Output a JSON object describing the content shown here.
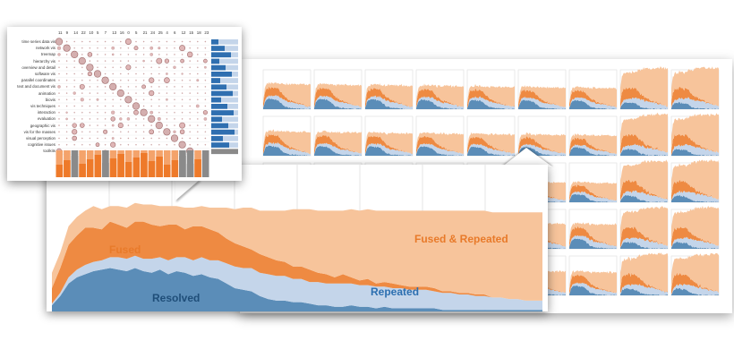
{
  "matrix": {
    "row_labels": [
      "time series data vis",
      "network vis",
      "treemap",
      "hierarchy vis",
      "overview and detail",
      "software vis",
      "parallel coordinates",
      "text and document vis",
      "animation",
      "biovis",
      "vis techniques",
      "interaction",
      "evaluation",
      "geographic vis",
      "vis for the masses",
      "visual perception",
      "cognitive issues",
      "toolkits"
    ],
    "col_labels": [
      "11",
      "9",
      "14",
      "22",
      "10",
      "5",
      "7",
      "13",
      "16",
      "0",
      "5",
      "21",
      "24",
      "25",
      "4",
      "6",
      "12",
      "15",
      "18",
      "23"
    ]
  },
  "chart_data": [
    {
      "type": "area",
      "title": "",
      "series_labels": [
        "Fused",
        "Fused & Repeated",
        "Resolved",
        "Repeated"
      ],
      "x": [
        0,
        1,
        2,
        3,
        4,
        5,
        6,
        7,
        8,
        9,
        10,
        11,
        12,
        13,
        14,
        15,
        16,
        17,
        18,
        19,
        20,
        21,
        22,
        23,
        24,
        25,
        26,
        27,
        28,
        29,
        30,
        31,
        32,
        33,
        34,
        35,
        36,
        37,
        38,
        39,
        40,
        41,
        42,
        43,
        44,
        45,
        46,
        47,
        48,
        49,
        50,
        51,
        52,
        53,
        54,
        55,
        56,
        57,
        58,
        59
      ],
      "series": [
        {
          "name": "Resolved",
          "values": [
            4,
            10,
            18,
            22,
            24,
            26,
            27,
            28,
            27,
            26,
            28,
            26,
            25,
            27,
            24,
            26,
            25,
            23,
            24,
            22,
            21,
            18,
            15,
            14,
            13,
            10,
            8,
            7,
            7,
            6,
            6,
            5,
            4,
            4,
            3,
            3,
            4,
            3,
            3,
            2,
            3,
            2,
            2,
            2,
            2,
            2,
            2,
            1,
            1,
            1,
            1,
            1,
            1,
            1,
            1,
            1,
            1,
            1,
            1,
            1
          ]
        },
        {
          "name": "Repeated",
          "values": [
            1,
            2,
            4,
            5,
            6,
            6,
            6,
            7,
            8,
            8,
            8,
            8,
            9,
            8,
            9,
            9,
            10,
            10,
            11,
            11,
            12,
            13,
            14,
            14,
            15,
            15,
            16,
            16,
            16,
            15,
            15,
            14,
            15,
            14,
            15,
            15,
            14,
            14,
            14,
            14,
            13,
            13,
            13,
            12,
            12,
            12,
            11,
            11,
            11,
            10,
            10,
            9,
            9,
            8,
            8,
            7,
            7,
            6,
            6,
            6
          ]
        },
        {
          "name": "Fused",
          "values": [
            10,
            16,
            21,
            22,
            24,
            22,
            20,
            23,
            21,
            20,
            22,
            24,
            22,
            20,
            23,
            21,
            18,
            22,
            20,
            20,
            18,
            16,
            15,
            14,
            12,
            12,
            11,
            10,
            9,
            8,
            8,
            8,
            6,
            6,
            4,
            6,
            4,
            3,
            4,
            2,
            3,
            3,
            2,
            2,
            2,
            2,
            2,
            1,
            1,
            1,
            1,
            1,
            1,
            0,
            0,
            0,
            0,
            0,
            0,
            0
          ]
        },
        {
          "name": "Fused & Repeated",
          "values": [
            10,
            10,
            12,
            12,
            11,
            14,
            13,
            10,
            12,
            13,
            12,
            11,
            13,
            13,
            12,
            12,
            14,
            12,
            13,
            14,
            16,
            20,
            22,
            25,
            27,
            28,
            30,
            32,
            33,
            37,
            37,
            39,
            40,
            41,
            43,
            41,
            44,
            45,
            45,
            47,
            46,
            47,
            48,
            49,
            49,
            49,
            50,
            52,
            52,
            53,
            53,
            54,
            54,
            55,
            55,
            56,
            56,
            57,
            57,
            57
          ]
        }
      ],
      "colors": {
        "Resolved": "#5b8db8",
        "Repeated": "#c4d5ea",
        "Fused": "#ee8a42",
        "Fused & Repeated": "#f7c49b"
      },
      "label_colors": {
        "dark_blue": "#1f4e79",
        "mid_blue": "#2c6fb0",
        "orange": "#e87a2a"
      }
    }
  ]
}
